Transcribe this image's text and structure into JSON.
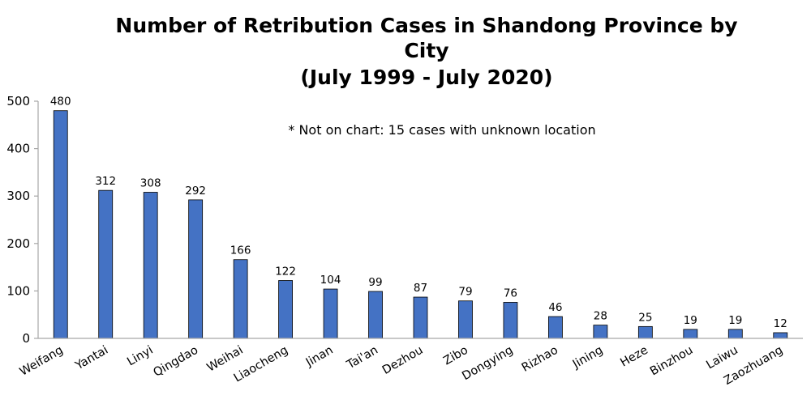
{
  "chart_data": {
    "type": "bar",
    "title_lines": [
      "Number of Retribution Cases in Shandong Province by",
      "City",
      "(July 1999 - July 2020)"
    ],
    "annotation": "* Not on chart: 15 cases with unknown location",
    "categories": [
      "Weifang",
      "Yantai",
      "Linyi",
      "Qingdao",
      "Weihai",
      "Liaocheng",
      "Jinan",
      "Tai'an",
      "Dezhou",
      "Zibo",
      "Dongying",
      "Rizhao",
      "Jining",
      "Heze",
      "Binzhou",
      "Laiwu",
      "Zaozhuang"
    ],
    "values": [
      480,
      312,
      308,
      292,
      166,
      122,
      104,
      99,
      87,
      79,
      76,
      46,
      28,
      25,
      19,
      19,
      12
    ],
    "xlabel": "",
    "ylabel": "",
    "ylim": [
      0,
      500
    ],
    "yticks": [
      0,
      100,
      200,
      300,
      400,
      500
    ],
    "grid": false,
    "data_labels": true,
    "colors": {
      "bar_fill": "#4472C4",
      "bar_stroke": "#000000",
      "axis": "#A6A6A6"
    }
  }
}
